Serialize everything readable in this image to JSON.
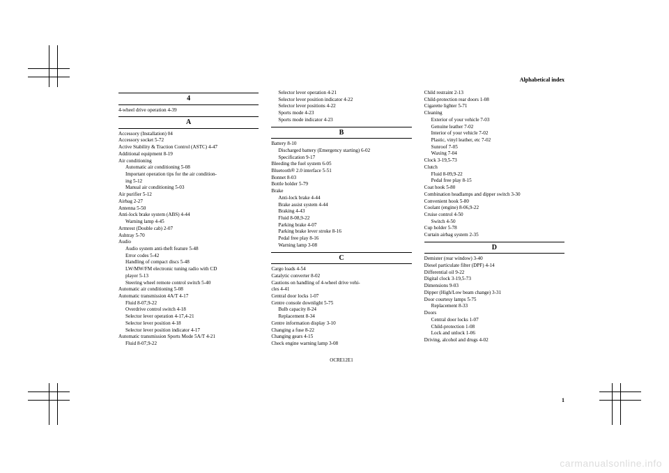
{
  "header": {
    "title": "Alphabetical index"
  },
  "footer": {
    "code": "OCRE12E1",
    "pageNum": "1"
  },
  "watermark": "carmanualsonline.info",
  "col1": {
    "s4": {
      "head": "4",
      "items": [
        "4-wheel drive operation  4-39"
      ]
    },
    "sA": {
      "head": "A",
      "items": [
        "Accessory (Installation)  04",
        "Accessory socket  5-72",
        "Active Stability & Traction Control (ASTC)  4-47",
        "Additional equipment  8-19",
        "Air conditioning",
        "Automatic air conditioning  5-08",
        "Important operation tips for the air condition-",
        "ing  5-12",
        "Manual air conditioning  5-03",
        "Air purifier  5-12",
        "Airbag  2-27",
        "Antenna  5-50",
        "Anti-lock brake system (ABS)  4-44",
        "Warning lamp  4-45",
        "Armrest (Double cab)  2-07",
        "Ashtray  5-70",
        "Audio",
        "Audio system anti-theft feature  5-48",
        "Error codes  5-42",
        "Handling of compact discs  5-48",
        "LW/MW/FM electronic tuning radio with CD",
        "player  5-13",
        "Steering wheel remote control switch  5-40",
        "Automatic air conditioning  5-08",
        "Automatic transmission 4A/T  4-17",
        "Fluid  8-07,9-22",
        "Overdrive control switch  4-18",
        "Selector lever operation  4-17,4-21",
        "Selector lever position  4-18",
        "Selector lever position indicator  4-17",
        "Automatic transmission Sports Mode 5A/T  4-21",
        "Fluid  8-07,9-22"
      ],
      "indents": [
        0,
        0,
        0,
        0,
        0,
        1,
        1,
        1,
        1,
        0,
        0,
        0,
        0,
        1,
        0,
        0,
        0,
        1,
        1,
        1,
        1,
        1,
        1,
        0,
        0,
        1,
        1,
        1,
        1,
        1,
        0,
        1
      ]
    }
  },
  "col2": {
    "top": [
      "Selector lever operation  4-21",
      "Selector lever position indicator  4-22",
      "Selector lever positions  4-22",
      "Sports mode  4-23",
      "Sports mode indicator  4-23"
    ],
    "topIndents": [
      1,
      1,
      1,
      1,
      1
    ],
    "sB": {
      "head": "B",
      "items": [
        "Battery  8-10",
        "Discharged battery (Emergency starting)  6-02",
        "Specification  9-17",
        "Bleeding the fuel system  6-05",
        "Bluetooth® 2.0 interface  5-51",
        "Bonnet  8-03",
        "Bottle holder  5-79",
        "Brake",
        "Anti-lock brake  4-44",
        "Brake assist system  4-44",
        "Braking  4-43",
        "Fluid  8-08,9-22",
        "Parking brake  4-07",
        "Parking brake lever stroke  8-16",
        "Pedal free play  8-16",
        "Warning lamp  3-08"
      ],
      "indents": [
        0,
        1,
        1,
        0,
        0,
        0,
        0,
        0,
        1,
        1,
        1,
        1,
        1,
        1,
        1,
        1
      ]
    },
    "sC": {
      "head": "C",
      "items": [
        "Cargo loads  4-54",
        "Catalytic converter  8-02",
        "Cautions on handling of 4-wheel drive vehi-",
        "cles  4-41",
        "Central door locks  1-07",
        "Centre console downlight  5-75",
        "Bulb capacity  8-24",
        "Replacement  8-34",
        "Centre information display  3-10",
        "Changing a fuse  8-22",
        "Changing gears  4-15",
        "Check engine warning lamp  3-08"
      ],
      "indents": [
        0,
        0,
        0,
        0,
        0,
        0,
        1,
        1,
        0,
        0,
        0,
        0
      ]
    }
  },
  "col3": {
    "top": [
      "Child restraint  2-13",
      "Child-protection rear doors  1-08",
      "Cigarette lighter  5-71",
      "Cleaning",
      "Exterior of your vehicle  7-03",
      "Genuine leather  7-02",
      "Interior of your vehicle  7-02",
      "Plastic, vinyl leather, etc  7-02",
      "Sunroof  7-05",
      "Waxing  7-04",
      "Clock  3-19,5-73",
      "Clutch",
      "Fluid  8-09,9-22",
      "Pedal free play  8-15",
      "Coat hook  5-80",
      "Combination headlamps and dipper switch  3-30",
      "Convenient hook  5-80",
      "Coolant (engine)  8-06,9-22",
      "Cruise control  4-50",
      "Switch  4-50",
      "Cup holder  5-78",
      "Curtain airbag system  2-35"
    ],
    "topIndents": [
      0,
      0,
      0,
      0,
      1,
      1,
      1,
      1,
      1,
      1,
      0,
      0,
      1,
      1,
      0,
      0,
      0,
      0,
      0,
      1,
      0,
      0
    ],
    "sD": {
      "head": "D",
      "items": [
        "Demister (rear window)  3-40",
        "Diesel particulate filter (DPF)  4-14",
        "Differential oil  9-22",
        "Digital clock  3-19,5-73",
        "Dimensions  9-03",
        "Dipper (High/Low beam change)  3-31",
        "Door courtesy lamps  5-75",
        "Replacement  8-33",
        "Doors",
        "Central door locks  1-07",
        "Child-protection  1-08",
        "Lock and unlock  1-06",
        "Driving, alcohol and drugs  4-02"
      ],
      "indents": [
        0,
        0,
        0,
        0,
        0,
        0,
        0,
        1,
        0,
        1,
        1,
        1,
        0
      ]
    }
  }
}
